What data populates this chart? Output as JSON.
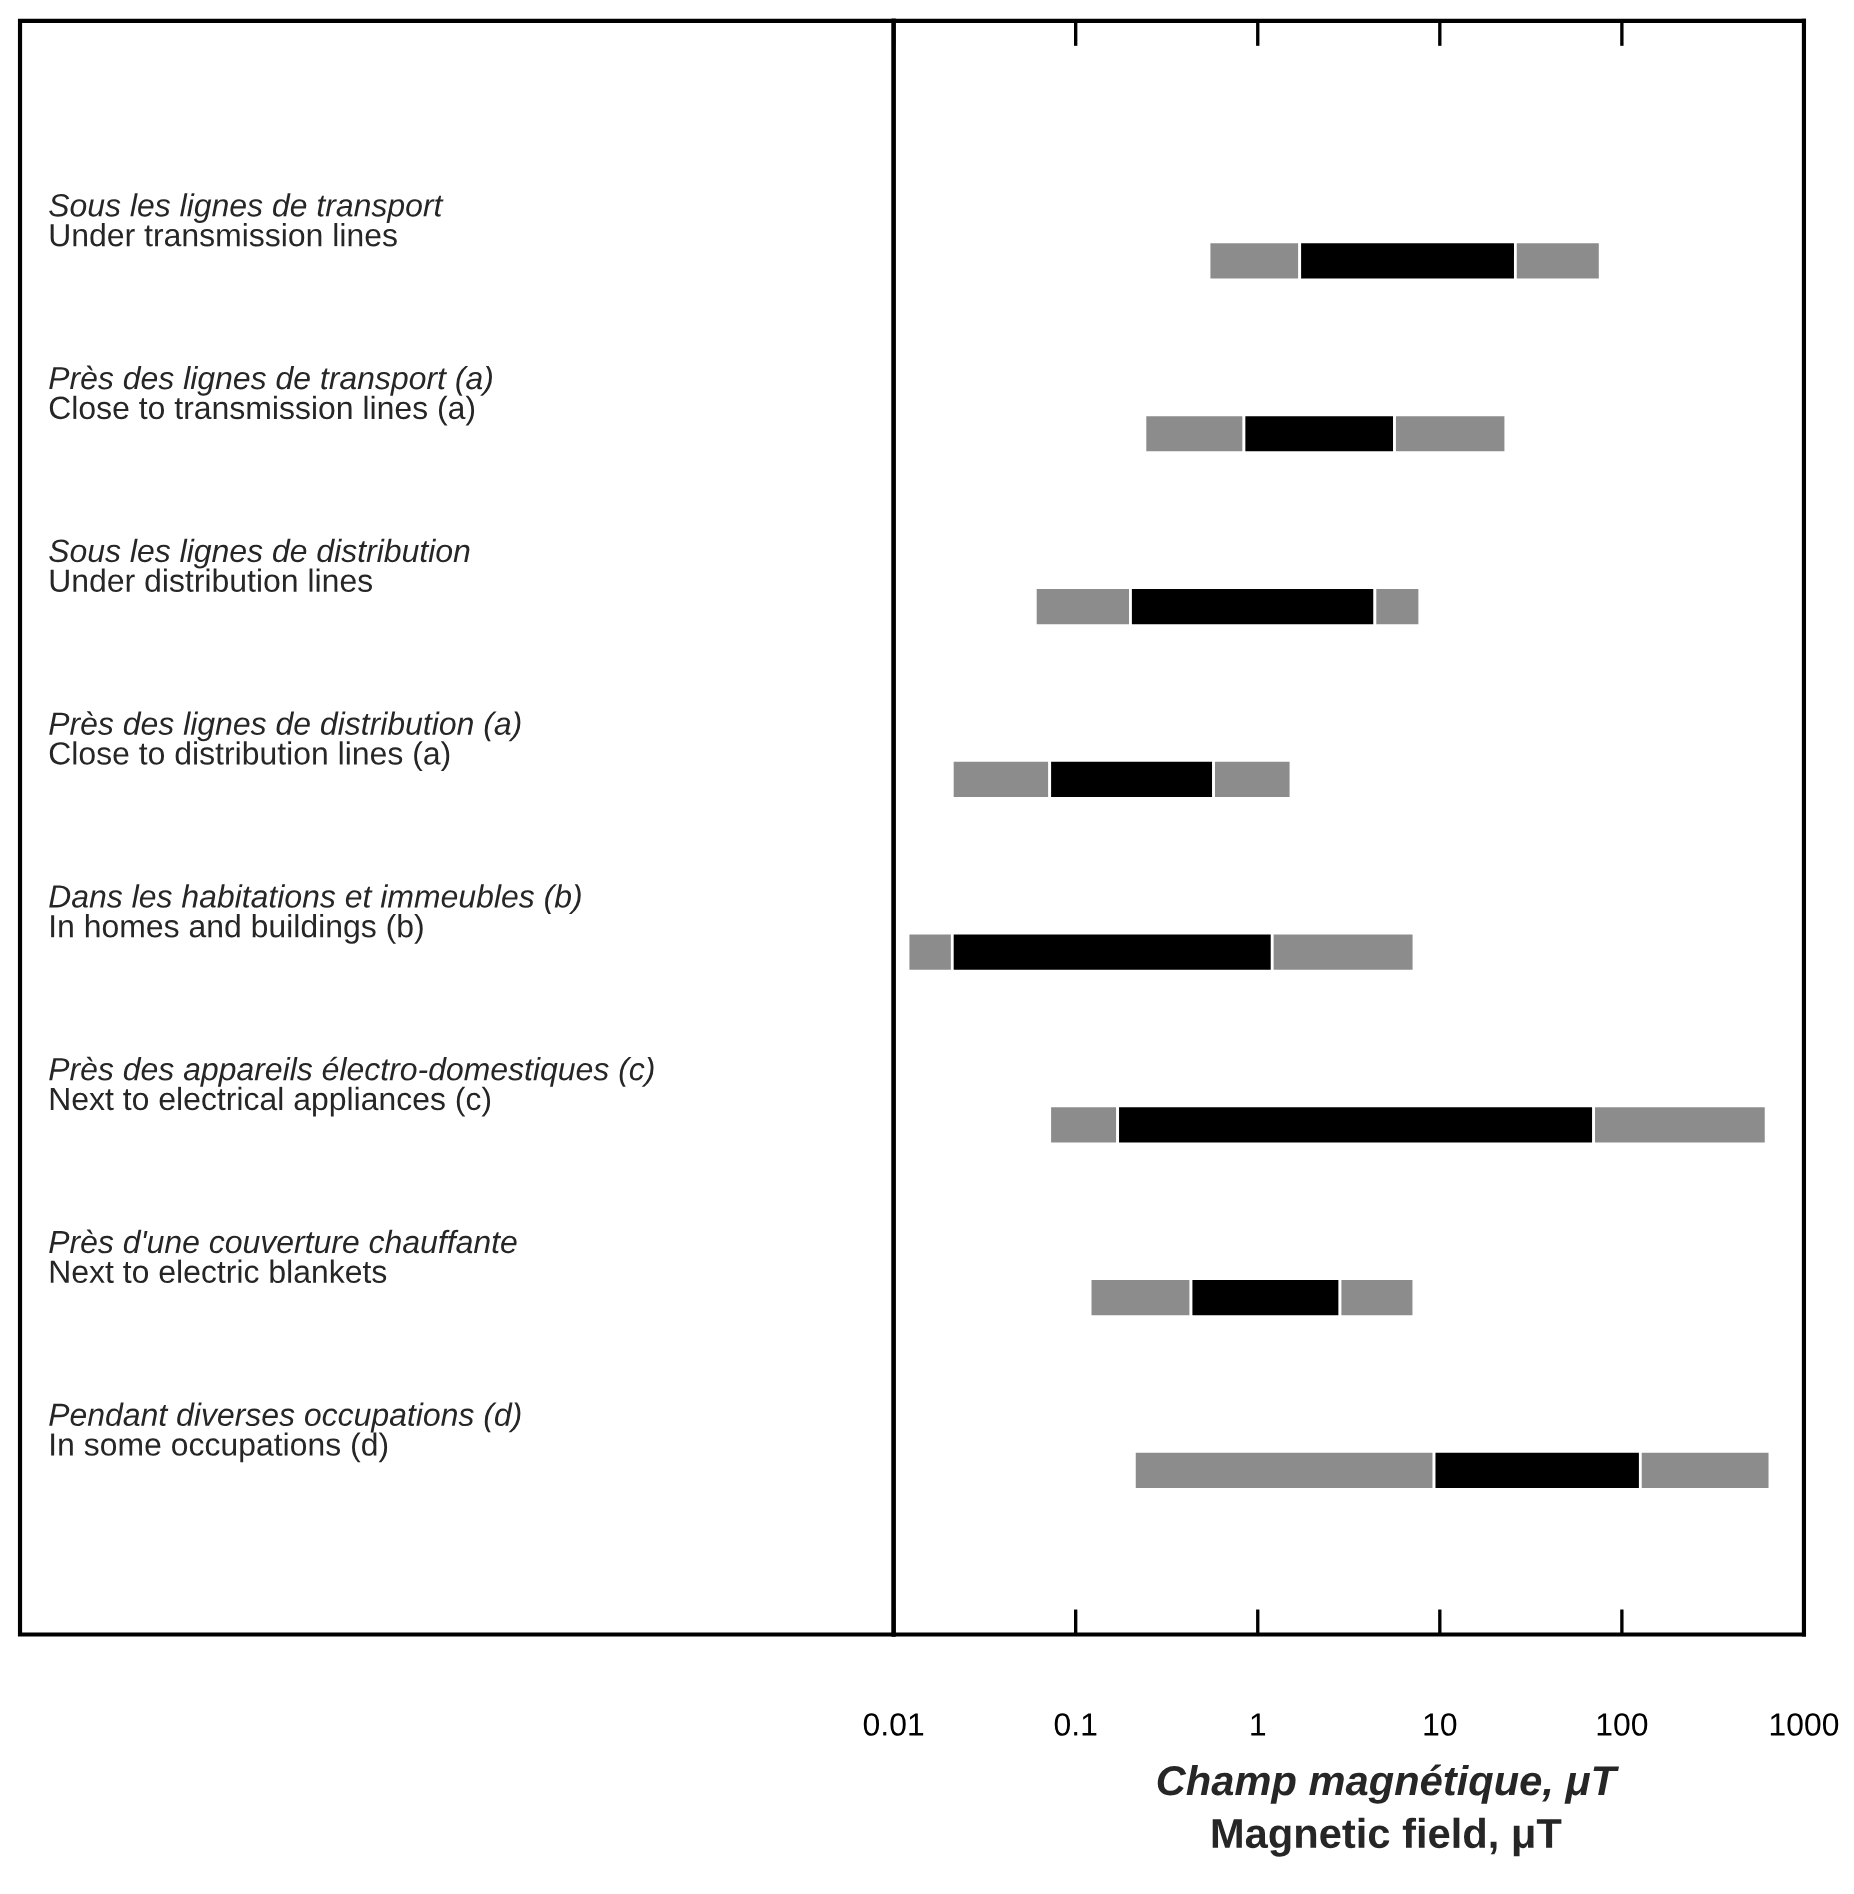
{
  "chart_data": {
    "type": "bar",
    "orientation": "horizontal",
    "categories": [
      "Sous les lignes de transport\nUnder transmission lines",
      "Près des lignes de transport (a)\nClose to transmission lines (a)",
      "Sous les lignes de distribution\nUnder distribution lines",
      "Près des lignes de distribution (a)\nClose to distribution lines (a)",
      "Dans les habitations et immeubles (b)\nIn homes and buildings (b)",
      "Près des appareils électro-domestiques (c)\nNext to electrical appliances (c)",
      "Près d'une couverture chauffante\nNext to electric blankets",
      "Pendant diverses occupations (d)\nIn some occupations (d)"
    ],
    "series": [
      {
        "color": "#8c8c8c",
        "base": [
          0.54,
          0.24,
          0.06,
          0.021,
          0.012,
          0.072,
          0.12,
          0.21
        ],
        "values": [
          1.16,
          0.6,
          0.14,
          0.051,
          0.009,
          0.098,
          0.31,
          9.09
        ]
      },
      {
        "color": "#000000",
        "base": [
          1.7,
          0.84,
          0.2,
          0.072,
          0.021,
          0.17,
          0.43,
          9.3
        ],
        "values": [
          24.3,
          4.8,
          4.2,
          0.5,
          1.18,
          69.8,
          2.4,
          117
        ]
      },
      {
        "color": "#8c8c8c",
        "base": [
          26,
          5.64,
          4.4,
          0.572,
          1.201,
          69.97,
          2.83,
          126.3
        ],
        "values": [
          50,
          17.4,
          3.36,
          0.95,
          6.01,
          550,
          4.37,
          524
        ]
      }
    ],
    "xlabel": "Champ magnétique, μT\nMagnetic field, μT",
    "xlim": [
      0.01,
      1000
    ],
    "xticks": [
      0.01,
      0.1,
      1,
      10,
      100,
      1000
    ],
    "log": "x",
    "grid": false,
    "legend": false
  }
}
